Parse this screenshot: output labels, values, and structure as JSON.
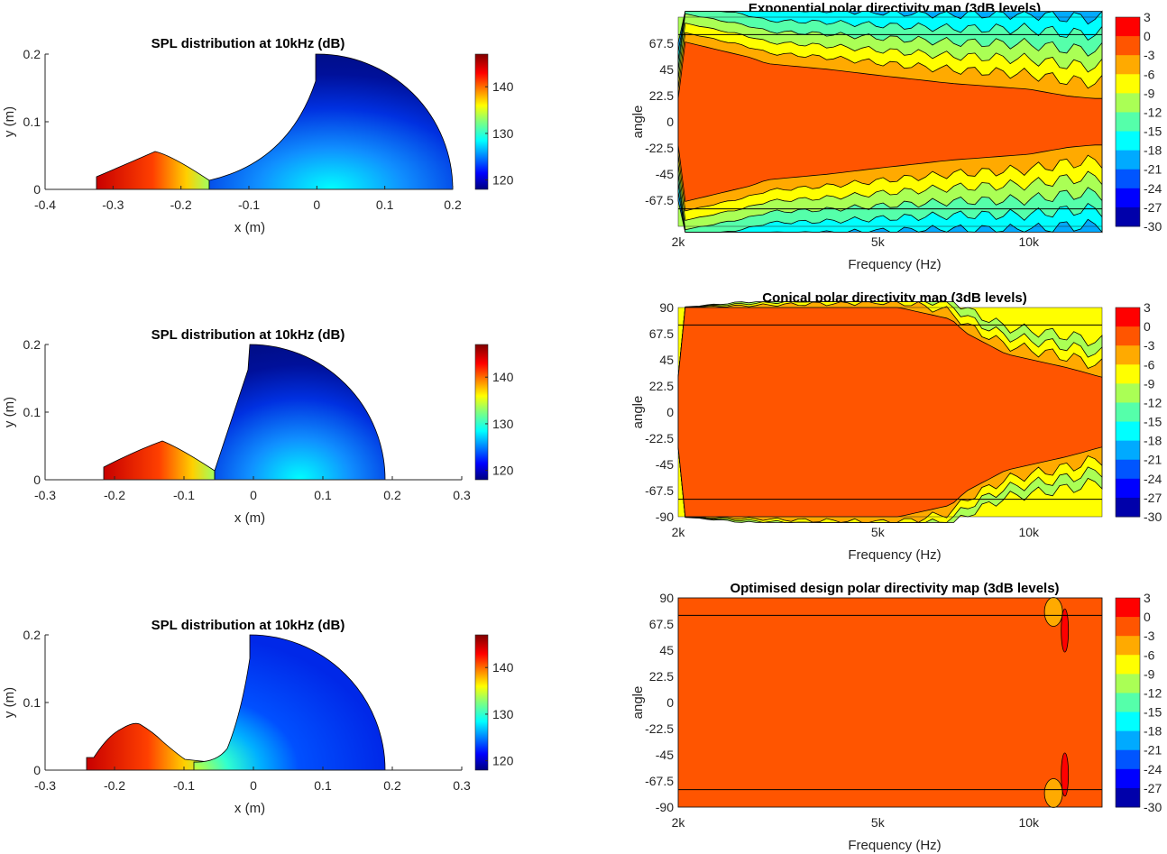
{
  "chart_data": [
    {
      "type": "heatmap",
      "id": "spl-exponential",
      "title": "SPL distribution at 10kHz (dB)",
      "xlabel": "x (m)",
      "ylabel": "y (m)",
      "xlim": [
        -0.4,
        0.2
      ],
      "ylim": [
        0,
        0.2
      ],
      "xticks": [
        "-0.4",
        "-0.3",
        "-0.2",
        "-0.1",
        "0",
        "0.1",
        "0.2"
      ],
      "xtick_values": [
        -0.4,
        -0.3,
        -0.2,
        -0.1,
        0,
        0.1,
        0.2
      ],
      "yticks": [
        "0",
        "0.1",
        "0.2"
      ],
      "ytick_values": [
        0,
        0.1,
        0.2
      ],
      "colorbar": {
        "ticks": [
          "120",
          "130",
          "140"
        ],
        "tick_values": [
          120,
          130,
          140
        ],
        "range": [
          118,
          147
        ],
        "colormap": "jet"
      },
      "geometry": {
        "horn_start_x": -0.33,
        "horn_peak_x": -0.24,
        "horn_peak_y": 0.057,
        "throat_x": -0.155,
        "throat_y": 0.012,
        "mouth_top_x": 0.0,
        "radius": 0.2,
        "flare": "exponential"
      }
    },
    {
      "type": "heatmap",
      "id": "spl-conical",
      "title": "SPL distribution at 10kHz (dB)",
      "xlabel": "x (m)",
      "ylabel": "y (m)",
      "xlim": [
        -0.3,
        0.3
      ],
      "ylim": [
        0,
        0.2
      ],
      "xticks": [
        "-0.3",
        "-0.2",
        "-0.1",
        "0",
        "0.1",
        "0.2",
        "0.3"
      ],
      "xtick_values": [
        -0.3,
        -0.2,
        -0.1,
        0,
        0.1,
        0.2,
        0.3
      ],
      "yticks": [
        "0",
        "0.1",
        "0.2"
      ],
      "ytick_values": [
        0,
        0.1,
        0.2
      ],
      "colorbar": {
        "ticks": [
          "120",
          "130",
          "140"
        ],
        "tick_values": [
          120,
          130,
          140
        ],
        "range": [
          118,
          147
        ],
        "colormap": "jet"
      },
      "geometry": {
        "horn_start_x": -0.22,
        "horn_peak_x": -0.13,
        "horn_peak_y": 0.057,
        "throat_x": -0.045,
        "throat_y": 0.012,
        "mouth_top_x": 0.0,
        "radius": 0.2,
        "flare": "conical"
      }
    },
    {
      "type": "heatmap",
      "id": "spl-optimised",
      "title": "SPL distribution at 10kHz (dB)",
      "xlabel": "x (m)",
      "ylabel": "y (m)",
      "xlim": [
        -0.3,
        0.3
      ],
      "ylim": [
        0,
        0.2
      ],
      "xticks": [
        "-0.3",
        "-0.2",
        "-0.1",
        "0",
        "0.1",
        "0.2",
        "0.3"
      ],
      "xtick_values": [
        -0.3,
        -0.2,
        -0.1,
        0,
        0.1,
        0.2,
        0.3
      ],
      "yticks": [
        "0",
        "0.1",
        "0.2"
      ],
      "ytick_values": [
        0,
        0.1,
        0.2
      ],
      "colorbar": {
        "ticks": [
          "120",
          "130",
          "140"
        ],
        "tick_values": [
          120,
          130,
          140
        ],
        "range": [
          118,
          147
        ],
        "colormap": "jet"
      },
      "geometry": {
        "horn_start_x": -0.245,
        "horn_peak_x": -0.16,
        "horn_peak_y": 0.068,
        "throat_x": -0.06,
        "throat_y": 0.013,
        "mouth_top_x": 0.0,
        "radius": 0.2,
        "flare": "optimised"
      }
    },
    {
      "type": "heatmap",
      "id": "directivity-exponential",
      "title": "Exponential polar directivity map (3dB levels)",
      "xlabel": "Frequency (Hz)",
      "ylabel": "angle",
      "xscale": "log",
      "xlim": [
        2000,
        14000
      ],
      "ylim": [
        -90,
        90
      ],
      "xticks": [
        "2k",
        "5k",
        "10k"
      ],
      "xtick_values": [
        2000,
        5000,
        10000
      ],
      "yticks": [
        "-67.5",
        "-45",
        "-22.5",
        "0",
        "22.5",
        "45",
        "67.5"
      ],
      "ytick_values": [
        -67.5,
        -45,
        -22.5,
        0,
        22.5,
        45,
        67.5
      ],
      "reference_lines": [
        75,
        -75
      ],
      "beamwidth_-3dB": {
        "freqs": [
          2000,
          2800,
          3000,
          4000,
          5000,
          7000,
          10000,
          12000,
          13500
        ],
        "angle": [
          70,
          55,
          50,
          45,
          40,
          33,
          28,
          22,
          20
        ]
      },
      "colorbar": {
        "ticks": [
          "3",
          "0",
          "-3",
          "-6",
          "-9",
          "-12",
          "-15",
          "-18",
          "-21",
          "-24",
          "-27",
          "-30"
        ],
        "tick_values": [
          3,
          0,
          -3,
          -6,
          -9,
          -12,
          -15,
          -18,
          -21,
          -24,
          -27,
          -30
        ]
      }
    },
    {
      "type": "heatmap",
      "id": "directivity-conical",
      "title": "Conical polar directivity map (3dB levels)",
      "xlabel": "Frequency (Hz)",
      "ylabel": "angle",
      "xscale": "log",
      "xlim": [
        2000,
        14000
      ],
      "ylim": [
        -90,
        90
      ],
      "xticks": [
        "2k",
        "5k",
        "10k"
      ],
      "xtick_values": [
        2000,
        5000,
        10000
      ],
      "yticks": [
        "90",
        "67.5",
        "45",
        "22.5",
        "0",
        "-22.5",
        "-45",
        "-67.5",
        "-90"
      ],
      "ytick_values": [
        90,
        67.5,
        45,
        22.5,
        0,
        -22.5,
        -45,
        -67.5,
        -90
      ],
      "reference_lines": [
        75,
        -75
      ],
      "beamwidth_-3dB": {
        "freqs": [
          2000,
          5500,
          7000,
          7500,
          9000,
          12000,
          14000
        ],
        "angle": [
          90,
          90,
          80,
          68,
          50,
          38,
          30
        ]
      },
      "colorbar": {
        "ticks": [
          "3",
          "0",
          "-3",
          "-6",
          "-9",
          "-12",
          "-15",
          "-18",
          "-21",
          "-24",
          "-27",
          "-30"
        ],
        "tick_values": [
          3,
          0,
          -3,
          -6,
          -9,
          -12,
          -15,
          -18,
          -21,
          -24,
          -27,
          -30
        ]
      }
    },
    {
      "type": "heatmap",
      "id": "directivity-optimised",
      "title": "Optimised design polar directivity map (3dB levels)",
      "xlabel": "Frequency (Hz)",
      "ylabel": "angle",
      "xscale": "log",
      "xlim": [
        2000,
        14000
      ],
      "ylim": [
        -90,
        90
      ],
      "xticks": [
        "2k",
        "5k",
        "10k"
      ],
      "xtick_values": [
        2000,
        5000,
        10000
      ],
      "yticks": [
        "90",
        "67.5",
        "45",
        "22.5",
        "0",
        "-22.5",
        "-45",
        "-67.5",
        "-90"
      ],
      "ytick_values": [
        90,
        67.5,
        45,
        22.5,
        0,
        -22.5,
        -45,
        -67.5,
        -90
      ],
      "reference_lines": [
        75,
        -75
      ],
      "beamwidth_-3dB": {
        "freqs": [
          2000,
          12000,
          14000
        ],
        "angle": [
          90,
          90,
          90
        ]
      },
      "colorbar": {
        "ticks": [
          "3",
          "0",
          "-3",
          "-6",
          "-9",
          "-12",
          "-15",
          "-18",
          "-21",
          "-24",
          "-27",
          "-30"
        ],
        "tick_values": [
          3,
          0,
          -3,
          -6,
          -9,
          -12,
          -15,
          -18,
          -21,
          -24,
          -27,
          -30
        ]
      }
    }
  ],
  "colors": {
    "levels": [
      "#ff0000",
      "#ff5500",
      "#ffaa00",
      "#ffff00",
      "#aaff55",
      "#55ffaa",
      "#00ffff",
      "#00aaff",
      "#0055ff",
      "#0000ff",
      "#0000aa"
    ],
    "jet": [
      "#00007f",
      "#0000ff",
      "#007fff",
      "#00ffff",
      "#7fff7f",
      "#ffff00",
      "#ff7f00",
      "#ff0000",
      "#7f0000"
    ]
  }
}
